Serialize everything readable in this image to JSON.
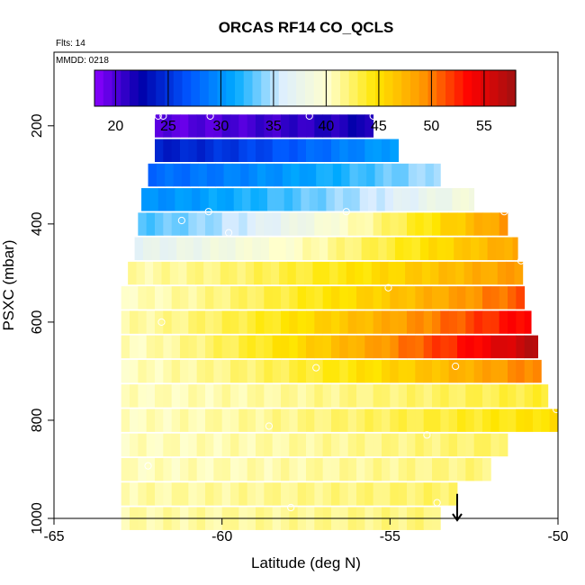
{
  "chart_data": {
    "type": "heatmap",
    "title": "ORCAS RF14 CO_QCLS",
    "flights_label": "Flts: 14",
    "date_label": "MMDD: 0218",
    "xlabel": "Latitude (deg N)",
    "ylabel": "PSXC (mbar)",
    "xlim": [
      -65,
      -50
    ],
    "ylim": [
      1000,
      50
    ],
    "y_reversed": true,
    "x_ticks": [
      -65,
      -60,
      -55,
      -50
    ],
    "x_tick_labels": [
      "-65",
      "-60",
      "-55",
      "-50"
    ],
    "y_ticks": [
      200,
      400,
      600,
      800,
      1000
    ],
    "y_tick_labels": [
      "200",
      "400",
      "600",
      "800",
      "1000"
    ],
    "colorbar": {
      "range": [
        18,
        58
      ],
      "ticks": [
        20,
        25,
        30,
        35,
        40,
        45,
        50,
        55
      ],
      "tick_labels": [
        "20",
        "25",
        "30",
        "35",
        "40",
        "45",
        "50",
        "55"
      ],
      "colors": [
        "#8B00FF",
        "#0000AA",
        "#0055FF",
        "#00AAFF",
        "#DDEEFF",
        "#FFFFCC",
        "#FFE600",
        "#FF9900",
        "#FF0000",
        "#A01010"
      ]
    },
    "bands": [
      {
        "p": 200,
        "lat_start": -62,
        "lat_end": -55.5,
        "left": 19.5,
        "right": 22
      },
      {
        "p": 250,
        "lat_start": -62,
        "lat_end": -54.7,
        "left": 24,
        "right": 31
      },
      {
        "p": 300,
        "lat_start": -62.2,
        "lat_end": -53.5,
        "left": 28,
        "right": 35
      },
      {
        "p": 350,
        "lat_start": -62.4,
        "lat_end": -52.5,
        "left": 30,
        "right": 39
      },
      {
        "p": 400,
        "lat_start": -62.5,
        "lat_end": -51.5,
        "left": 33,
        "right": 49
      },
      {
        "p": 450,
        "lat_start": -62.6,
        "lat_end": -51.2,
        "left": 37,
        "right": 48.5
      },
      {
        "p": 500,
        "lat_start": -62.8,
        "lat_end": -51.0,
        "left": 41,
        "right": 49
      },
      {
        "p": 550,
        "lat_start": -63,
        "lat_end": -50.9,
        "left": 40.5,
        "right": 51
      },
      {
        "p": 600,
        "lat_start": -63,
        "lat_end": -50.8,
        "left": 41,
        "right": 54
      },
      {
        "p": 650,
        "lat_start": -63,
        "lat_end": -50.6,
        "left": 40.5,
        "right": 57
      },
      {
        "p": 700,
        "lat_start": -63,
        "lat_end": -50.5,
        "left": 40.5,
        "right": 50
      },
      {
        "p": 750,
        "lat_start": -63,
        "lat_end": -50.3,
        "left": 40.5,
        "right": 43.5
      },
      {
        "p": 800,
        "lat_start": -63,
        "lat_end": -50,
        "left": 40.5,
        "right": 45
      },
      {
        "p": 850,
        "lat_start": -63,
        "lat_end": -51.5,
        "left": 40.5,
        "right": 42.5
      },
      {
        "p": 900,
        "lat_start": -63,
        "lat_end": -52,
        "left": 40.5,
        "right": 42
      },
      {
        "p": 950,
        "lat_start": -63,
        "lat_end": -53,
        "left": 41,
        "right": 42.5
      },
      {
        "p": 1000,
        "lat_start": -63,
        "lat_end": -53.5,
        "left": 41,
        "right": 42
      }
    ],
    "sample_points": [
      {
        "x": -61.9,
        "y": 180
      },
      {
        "x": -61.75,
        "y": 180
      },
      {
        "x": -60.35,
        "y": 180
      },
      {
        "x": -57.4,
        "y": 180
      },
      {
        "x": -55.5,
        "y": 180
      },
      {
        "x": -60.4,
        "y": 375
      },
      {
        "x": -61.2,
        "y": 393
      },
      {
        "x": -59.8,
        "y": 418
      },
      {
        "x": -56.3,
        "y": 375
      },
      {
        "x": -51.6,
        "y": 375
      },
      {
        "x": -51.1,
        "y": 475
      },
      {
        "x": -55.05,
        "y": 530
      },
      {
        "x": -61.8,
        "y": 600
      },
      {
        "x": -50.6,
        "y": 618
      },
      {
        "x": -53.05,
        "y": 690
      },
      {
        "x": -57.2,
        "y": 693
      },
      {
        "x": -50.05,
        "y": 778
      },
      {
        "x": -58.6,
        "y": 812
      },
      {
        "x": -53.9,
        "y": 830
      },
      {
        "x": -62.2,
        "y": 893
      },
      {
        "x": -57.95,
        "y": 978
      },
      {
        "x": -53.6,
        "y": 968
      },
      {
        "x": -49.95,
        "y": 200
      }
    ],
    "arrow_marker": {
      "x": -53.0,
      "y_from": 950,
      "y_to": 1000
    }
  }
}
